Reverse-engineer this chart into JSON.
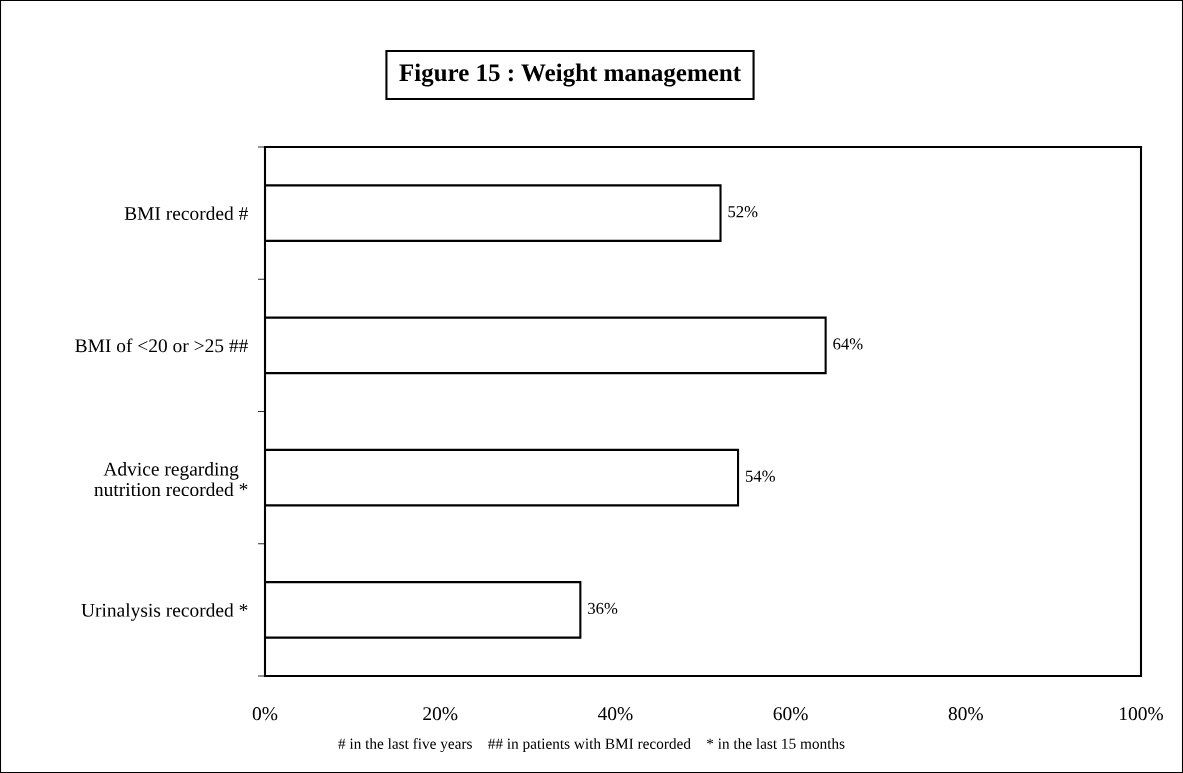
{
  "chart_data": {
    "type": "bar",
    "orientation": "horizontal",
    "title": "Figure 15 : Weight management",
    "categories": [
      "BMI recorded #",
      "BMI of <20 or >25 ##",
      "Advice regarding\nnutrition recorded *",
      "Urinalysis recorded *"
    ],
    "values": [
      52,
      64,
      54,
      36
    ],
    "value_labels": [
      "52%",
      "64%",
      "54%",
      "36%"
    ],
    "color": "#ffffff",
    "xlim": [
      0,
      100
    ],
    "xticks": [
      {
        "value": 0,
        "label": "0%"
      },
      {
        "value": 20,
        "label": "20%"
      },
      {
        "value": 40,
        "label": "40%"
      },
      {
        "value": 60,
        "label": "60%"
      },
      {
        "value": 80,
        "label": "80%"
      },
      {
        "value": 100,
        "label": "100%"
      }
    ],
    "grid": false,
    "annotations": [
      "# in the last five years    ## in patients with BMI recorded    * in the last 15 months"
    ]
  }
}
